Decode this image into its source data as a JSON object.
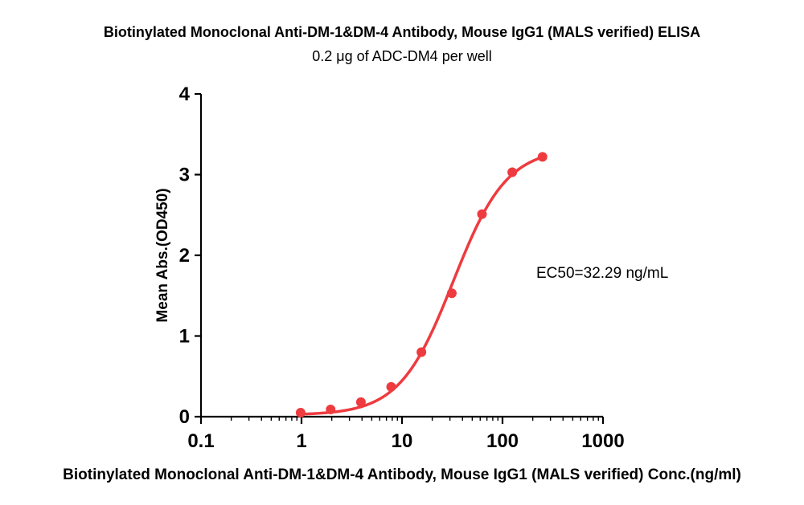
{
  "chart_data": {
    "type": "scatter",
    "title": "Biotinylated Monoclonal Anti-DM-1&DM-4 Antibody, Mouse IgG1 (MALS verified) ELISA",
    "subtitle": "0.2 μg of ADC-DM4 per well",
    "xlabel": "Biotinylated Monoclonal Anti-DM-1&DM-4 Antibody, Mouse IgG1 (MALS verified) Conc.(ng/ml)",
    "ylabel": "Mean Abs.(OD450)",
    "x_scale": "log",
    "xlim": [
      0.1,
      1000
    ],
    "ylim": [
      0,
      4
    ],
    "x_ticks": [
      0.1,
      1,
      10,
      100,
      1000
    ],
    "x_tick_labels": [
      "0.1",
      "1",
      "10",
      "100",
      "1000"
    ],
    "y_ticks": [
      0,
      1,
      2,
      3,
      4
    ],
    "y_tick_labels": [
      "0",
      "1",
      "2",
      "3",
      "4"
    ],
    "grid": false,
    "series": [
      {
        "color": "#ee3b3f",
        "x": [
          0.98,
          1.95,
          3.9,
          7.8,
          15.6,
          31.3,
          62.5,
          125,
          250
        ],
        "y": [
          0.05,
          0.09,
          0.18,
          0.37,
          0.8,
          1.53,
          2.51,
          3.03,
          3.22
        ],
        "fit_curve": "4PL"
      }
    ],
    "annotations": [
      "EC50=32.29 ng/mL"
    ]
  }
}
